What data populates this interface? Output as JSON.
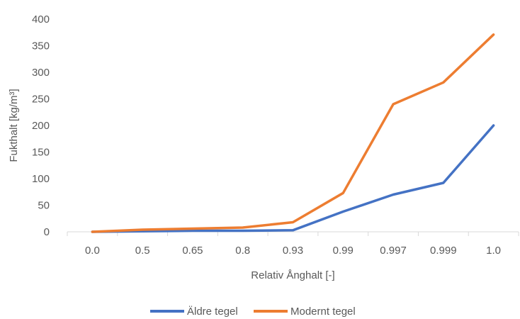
{
  "chart_data": {
    "type": "line",
    "title": "",
    "xlabel": "Relativ Ånghalt [-]",
    "ylabel": "Fukthalt [kg/m³]",
    "categories": [
      "0.0",
      "0.5",
      "0.65",
      "0.8",
      "0.93",
      "0.99",
      "0.997",
      "0.999",
      "1.0"
    ],
    "ylim": [
      0,
      400
    ],
    "yticks": [
      0,
      50,
      100,
      150,
      200,
      250,
      300,
      350,
      400
    ],
    "grid": false,
    "legend": "bottom",
    "series": [
      {
        "name": "Äldre tegel",
        "color": "#4472C4",
        "values": [
          0,
          1,
          2,
          2,
          3,
          38,
          70,
          92,
          200
        ]
      },
      {
        "name": "Modernt tegel",
        "color": "#ED7D31",
        "values": [
          0,
          4,
          6,
          8,
          18,
          73,
          240,
          281,
          371
        ]
      }
    ]
  }
}
